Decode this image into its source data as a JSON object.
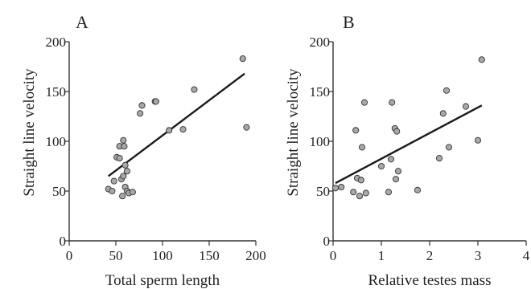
{
  "chart_data": [
    {
      "type": "scatter",
      "panel_label": "A",
      "xlabel": "Total sperm length",
      "ylabel": "Straight line velocity",
      "xlim": [
        0,
        200
      ],
      "ylim": [
        0,
        200
      ],
      "xticks": [
        0,
        50,
        100,
        150,
        200
      ],
      "yticks": [
        0,
        50,
        100,
        150,
        200
      ],
      "grid": false,
      "points": [
        {
          "x": 42,
          "y": 52
        },
        {
          "x": 46,
          "y": 50
        },
        {
          "x": 48,
          "y": 60
        },
        {
          "x": 51,
          "y": 84
        },
        {
          "x": 54,
          "y": 83
        },
        {
          "x": 54,
          "y": 95
        },
        {
          "x": 56,
          "y": 62
        },
        {
          "x": 57,
          "y": 45
        },
        {
          "x": 58,
          "y": 101
        },
        {
          "x": 58,
          "y": 65
        },
        {
          "x": 59,
          "y": 95
        },
        {
          "x": 60,
          "y": 76
        },
        {
          "x": 60,
          "y": 54
        },
        {
          "x": 62,
          "y": 50
        },
        {
          "x": 62,
          "y": 70
        },
        {
          "x": 64,
          "y": 48
        },
        {
          "x": 68,
          "y": 49
        },
        {
          "x": 76,
          "y": 128
        },
        {
          "x": 78,
          "y": 136
        },
        {
          "x": 92,
          "y": 140
        },
        {
          "x": 93,
          "y": 140
        },
        {
          "x": 107,
          "y": 111
        },
        {
          "x": 122,
          "y": 112
        },
        {
          "x": 134,
          "y": 152
        },
        {
          "x": 186,
          "y": 183
        },
        {
          "x": 190,
          "y": 114
        }
      ],
      "fit_line": {
        "x": [
          42,
          188
        ],
        "y": [
          65,
          168
        ]
      }
    },
    {
      "type": "scatter",
      "panel_label": "B",
      "xlabel": "Relative testes mass",
      "ylabel": "Straight line velocity",
      "xlim": [
        0,
        4
      ],
      "ylim": [
        0,
        200
      ],
      "xticks": [
        0,
        1,
        2,
        3,
        4
      ],
      "yticks": [
        0,
        50,
        100,
        150,
        200
      ],
      "grid": false,
      "points": [
        {
          "x": 0.05,
          "y": 53
        },
        {
          "x": 0.17,
          "y": 54
        },
        {
          "x": 0.42,
          "y": 49
        },
        {
          "x": 0.47,
          "y": 111
        },
        {
          "x": 0.5,
          "y": 63
        },
        {
          "x": 0.55,
          "y": 45
        },
        {
          "x": 0.58,
          "y": 61
        },
        {
          "x": 0.6,
          "y": 94
        },
        {
          "x": 0.65,
          "y": 139
        },
        {
          "x": 0.68,
          "y": 48
        },
        {
          "x": 1.0,
          "y": 75
        },
        {
          "x": 1.15,
          "y": 49
        },
        {
          "x": 1.2,
          "y": 82
        },
        {
          "x": 1.22,
          "y": 139
        },
        {
          "x": 1.28,
          "y": 113
        },
        {
          "x": 1.3,
          "y": 62
        },
        {
          "x": 1.32,
          "y": 110
        },
        {
          "x": 1.35,
          "y": 70
        },
        {
          "x": 1.75,
          "y": 51
        },
        {
          "x": 2.2,
          "y": 83
        },
        {
          "x": 2.28,
          "y": 128
        },
        {
          "x": 2.35,
          "y": 151
        },
        {
          "x": 2.4,
          "y": 94
        },
        {
          "x": 2.75,
          "y": 135
        },
        {
          "x": 3.0,
          "y": 101
        },
        {
          "x": 3.08,
          "y": 182
        }
      ],
      "fit_line": {
        "x": [
          0.05,
          3.08
        ],
        "y": [
          58,
          136
        ]
      }
    }
  ]
}
